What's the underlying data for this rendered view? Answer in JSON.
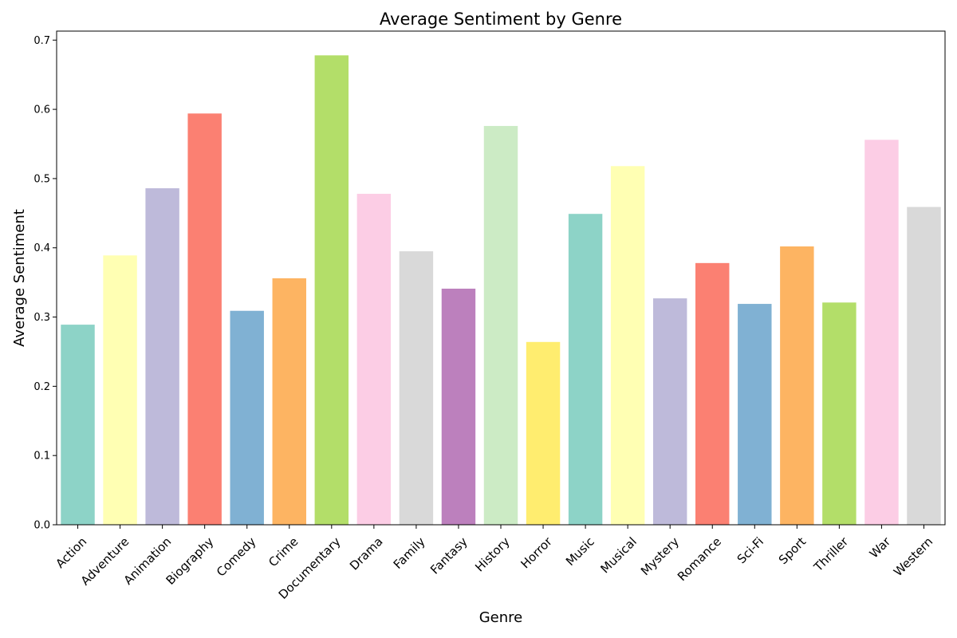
{
  "chart_data": {
    "type": "bar",
    "title": "Average Sentiment by Genre",
    "xlabel": "Genre",
    "ylabel": "Average Sentiment",
    "ylim": [
      0,
      0.713
    ],
    "yticks": [
      0.0,
      0.1,
      0.2,
      0.3,
      0.4,
      0.5,
      0.6,
      0.7
    ],
    "ytick_labels": [
      "0.0",
      "0.1",
      "0.2",
      "0.3",
      "0.4",
      "0.5",
      "0.6",
      "0.7"
    ],
    "grid": false,
    "legend": "none",
    "categories": [
      "Action",
      "Adventure",
      "Animation",
      "Biography",
      "Comedy",
      "Crime",
      "Documentary",
      "Drama",
      "Family",
      "Fantasy",
      "History",
      "Horror",
      "Music",
      "Musical",
      "Mystery",
      "Romance",
      "Sci-Fi",
      "Sport",
      "Thriller",
      "War",
      "Western"
    ],
    "values": [
      0.289,
      0.389,
      0.486,
      0.594,
      0.309,
      0.356,
      0.678,
      0.478,
      0.395,
      0.341,
      0.576,
      0.264,
      0.449,
      0.518,
      0.327,
      0.378,
      0.319,
      0.402,
      0.321,
      0.556,
      0.459
    ],
    "colors": [
      "#8dd3c7",
      "#ffffb3",
      "#bebada",
      "#fb8072",
      "#80b1d3",
      "#fdb462",
      "#b3de69",
      "#fccde5",
      "#d9d9d9",
      "#bc80bd",
      "#ccebc5",
      "#ffed6f",
      "#8dd3c7",
      "#ffffb3",
      "#bebada",
      "#fb8072",
      "#80b1d3",
      "#fdb462",
      "#b3de69",
      "#fccde5",
      "#d9d9d9"
    ]
  }
}
